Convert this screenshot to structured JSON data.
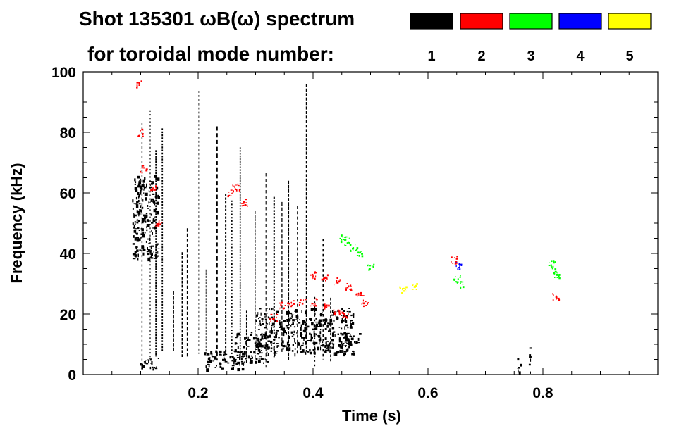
{
  "chart_data": {
    "type": "heatmap",
    "title": "Shot 135301 ωB(ω) spectrum",
    "subtitle": "for toroidal mode number:",
    "xlabel": "Time (s)",
    "ylabel": "Frequency (kHz)",
    "xlim": [
      0.0,
      1.0
    ],
    "ylim": [
      0,
      100
    ],
    "x_ticks": [
      "0.2",
      "0.4",
      "0.6",
      "0.8"
    ],
    "x_tick_values": [
      0.2,
      0.4,
      0.6,
      0.8
    ],
    "y_ticks": [
      "0",
      "20",
      "40",
      "60",
      "80",
      "100"
    ],
    "y_tick_values": [
      0,
      20,
      40,
      60,
      80,
      100
    ],
    "legend_placement": "top-right",
    "legend": [
      {
        "label": "1",
        "color": "#000000"
      },
      {
        "label": "2",
        "color": "#ff0000"
      },
      {
        "label": "3",
        "color": "#00ff00"
      },
      {
        "label": "4",
        "color": "#0000ff"
      },
      {
        "label": "5",
        "color": "#ffff00"
      }
    ],
    "grid": false,
    "series": [
      {
        "mode": 1,
        "color": "#000000",
        "regions": [
          {
            "t0": 0.085,
            "t1": 0.13,
            "f0": 38,
            "f1": 66
          },
          {
            "t0": 0.095,
            "t1": 0.135,
            "f0": 2,
            "f1": 6
          },
          {
            "t0": 0.21,
            "t1": 0.28,
            "f0": 2,
            "f1": 8
          },
          {
            "t0": 0.26,
            "t1": 0.32,
            "f0": 4,
            "f1": 14
          },
          {
            "t0": 0.3,
            "t1": 0.47,
            "f0": 7,
            "f1": 22
          },
          {
            "t0": 0.45,
            "t1": 0.48,
            "f0": 9,
            "f1": 14
          },
          {
            "t0": 0.755,
            "t1": 0.76,
            "f0": 1,
            "f1": 7
          },
          {
            "t0": 0.775,
            "t1": 0.778,
            "f0": 1,
            "f1": 9
          }
        ],
        "bursts": [
          0.1,
          0.115,
          0.125,
          0.14,
          0.155,
          0.17,
          0.18,
          0.2,
          0.215,
          0.23,
          0.245,
          0.26,
          0.275,
          0.285,
          0.3,
          0.315,
          0.33,
          0.345,
          0.36,
          0.375,
          0.39,
          0.405,
          0.415,
          0.43
        ]
      },
      {
        "mode": 2,
        "color": "#ff0000",
        "points": [
          [
            0.095,
            96
          ],
          [
            0.1,
            80
          ],
          [
            0.105,
            68
          ],
          [
            0.12,
            62
          ],
          [
            0.13,
            50
          ],
          [
            0.255,
            60
          ],
          [
            0.265,
            62
          ],
          [
            0.28,
            57
          ],
          [
            0.33,
            19
          ],
          [
            0.345,
            23
          ],
          [
            0.36,
            24
          ],
          [
            0.38,
            24
          ],
          [
            0.4,
            24
          ],
          [
            0.42,
            23
          ],
          [
            0.44,
            21
          ],
          [
            0.455,
            20
          ],
          [
            0.4,
            33
          ],
          [
            0.42,
            32
          ],
          [
            0.44,
            31
          ],
          [
            0.46,
            29
          ],
          [
            0.48,
            26
          ],
          [
            0.49,
            24
          ],
          [
            0.645,
            38
          ],
          [
            0.822,
            26
          ]
        ]
      },
      {
        "mode": 3,
        "color": "#00ff00",
        "points": [
          [
            0.45,
            45
          ],
          [
            0.46,
            44
          ],
          [
            0.47,
            42
          ],
          [
            0.48,
            40
          ],
          [
            0.5,
            36
          ],
          [
            0.65,
            32
          ],
          [
            0.655,
            30
          ],
          [
            0.815,
            37
          ],
          [
            0.82,
            35
          ],
          [
            0.825,
            33
          ]
        ]
      },
      {
        "mode": 4,
        "color": "#0000ff",
        "points": [
          [
            0.652,
            36
          ]
        ]
      },
      {
        "mode": 5,
        "color": "#ffff00",
        "points": [
          [
            0.555,
            28
          ],
          [
            0.575,
            29
          ]
        ]
      }
    ]
  }
}
